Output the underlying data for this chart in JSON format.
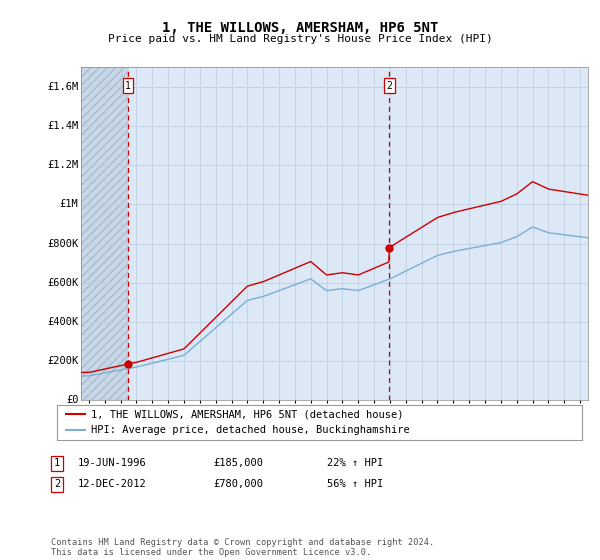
{
  "title": "1, THE WILLOWS, AMERSHAM, HP6 5NT",
  "subtitle": "Price paid vs. HM Land Registry's House Price Index (HPI)",
  "ylim": [
    0,
    1700000
  ],
  "xlim": [
    1993.5,
    2025.5
  ],
  "yticks": [
    0,
    200000,
    400000,
    600000,
    800000,
    1000000,
    1200000,
    1400000,
    1600000
  ],
  "ytick_labels": [
    "£0",
    "£200K",
    "£400K",
    "£600K",
    "£800K",
    "£1M",
    "£1.2M",
    "£1.4M",
    "£1.6M"
  ],
  "xticks": [
    1994,
    1995,
    1996,
    1997,
    1998,
    1999,
    2000,
    2001,
    2002,
    2003,
    2004,
    2005,
    2006,
    2007,
    2008,
    2009,
    2010,
    2011,
    2012,
    2013,
    2014,
    2015,
    2016,
    2017,
    2018,
    2019,
    2020,
    2021,
    2022,
    2023,
    2024,
    2025
  ],
  "sale1_x": 1996.46,
  "sale1_y": 185000,
  "sale2_x": 2012.95,
  "sale2_y": 780000,
  "legend_entries": [
    "1, THE WILLOWS, AMERSHAM, HP6 5NT (detached house)",
    "HPI: Average price, detached house, Buckinghamshire"
  ],
  "table_rows": [
    [
      "1",
      "19-JUN-1996",
      "£185,000",
      "22% ↑ HPI"
    ],
    [
      "2",
      "12-DEC-2012",
      "£780,000",
      "56% ↑ HPI"
    ]
  ],
  "footnote": "Contains HM Land Registry data © Crown copyright and database right 2024.\nThis data is licensed under the Open Government Licence v3.0.",
  "line_color_red": "#cc0000",
  "line_color_blue": "#7bafd4",
  "grid_color": "#bbccdd",
  "vline_color": "#cc0000",
  "bg_chart": "#dce8f5",
  "bg_hatched": "#c8d8e8"
}
